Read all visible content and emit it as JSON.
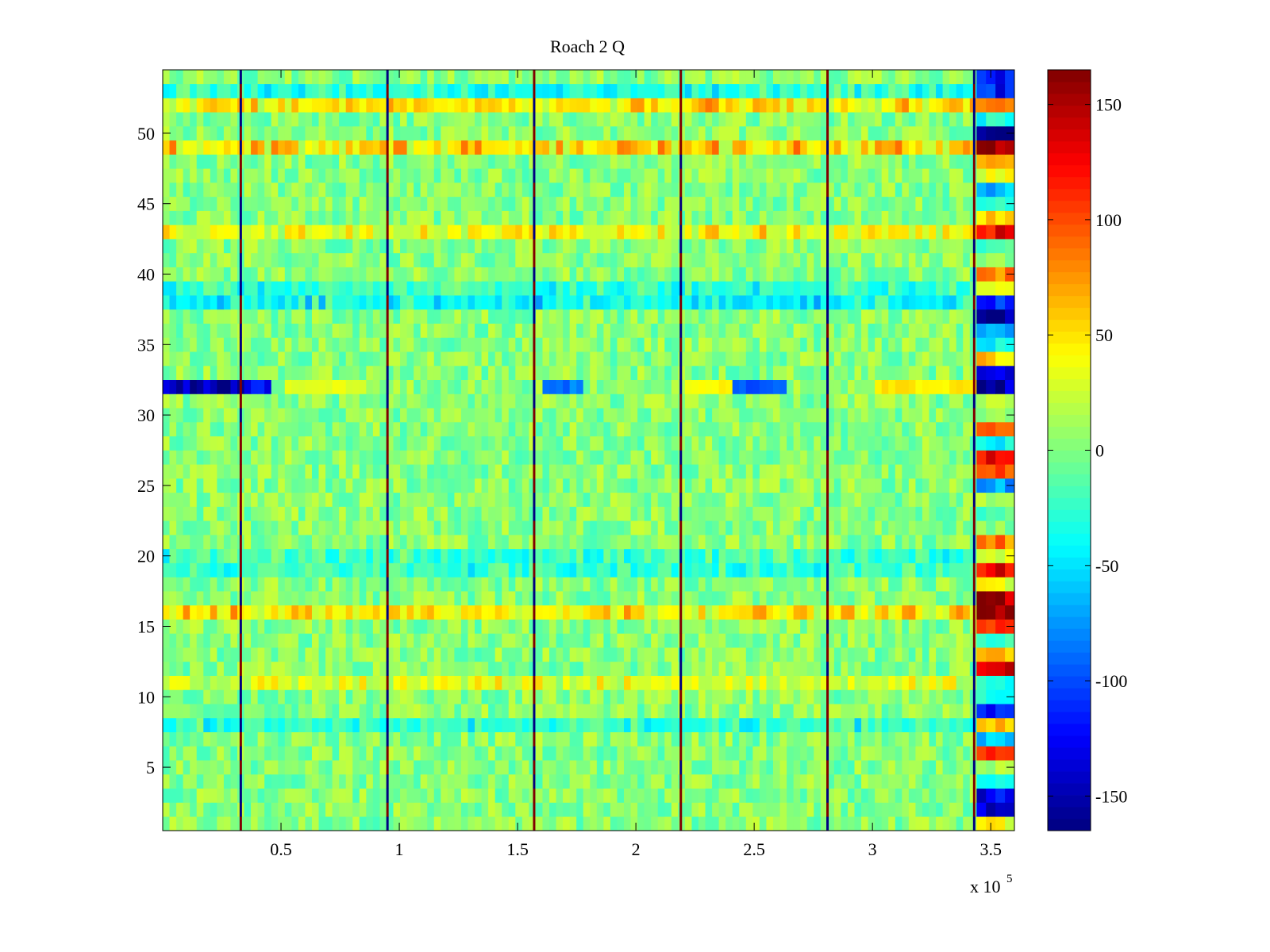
{
  "chart_data": {
    "type": "heatmap",
    "title": "Roach 2 Q",
    "xlabel": "",
    "ylabel": "",
    "x_multiplier": "x 10",
    "x_multiplier_exponent": "5",
    "xlim": [
      0,
      360000
    ],
    "ylim": [
      0.5,
      54.5
    ],
    "x_ticks": [
      0.5,
      1,
      1.5,
      2,
      2.5,
      3,
      3.5
    ],
    "x_tick_labels": [
      "0.5",
      "1",
      "1.5",
      "2",
      "2.5",
      "3",
      "3.5"
    ],
    "y_ticks": [
      5,
      10,
      15,
      20,
      25,
      30,
      35,
      40,
      45,
      50
    ],
    "y_tick_labels": [
      "5",
      "10",
      "15",
      "20",
      "25",
      "30",
      "35",
      "40",
      "45",
      "50"
    ],
    "colorbar": {
      "colormap": "jet",
      "clim": [
        -165,
        165
      ],
      "ticks": [
        -150,
        -100,
        -50,
        0,
        50,
        100,
        150
      ],
      "tick_labels": [
        "-150",
        "-100",
        "-50",
        "0",
        "50",
        "100",
        "150"
      ]
    },
    "rows": 54,
    "baseline_value": 0,
    "spike_columns_x": [
      33000,
      95000,
      157000,
      219000,
      281000,
      343000
    ],
    "spike_values": [
      165,
      -165
    ],
    "edge_block_x_range": [
      344000,
      360000
    ],
    "highlight_row": 32,
    "highlight_row_segments": [
      {
        "x_range": [
          0,
          33000
        ],
        "value": -160
      },
      {
        "x_range": [
          33000,
          45000
        ],
        "value": -130
      },
      {
        "x_range": [
          50000,
          85000
        ],
        "value": 35
      },
      {
        "x_range": [
          160000,
          175000
        ],
        "value": -90
      },
      {
        "x_range": [
          220000,
          240000
        ],
        "value": 45
      },
      {
        "x_range": [
          240000,
          262000
        ],
        "value": -100
      },
      {
        "x_range": [
          300000,
          343000
        ],
        "value": 50
      },
      {
        "x_range": [
          344000,
          360000
        ],
        "value": -160
      }
    ],
    "row_bias": [
      {
        "row": 52,
        "value": 45
      },
      {
        "row": 53,
        "value": -30
      },
      {
        "row": 49,
        "value": 50
      },
      {
        "row": 43,
        "value": 35
      },
      {
        "row": 38,
        "value": -40
      },
      {
        "row": 39,
        "value": -30
      },
      {
        "row": 16,
        "value": 45
      },
      {
        "row": 20,
        "value": -25
      },
      {
        "row": 19,
        "value": -25
      },
      {
        "row": 8,
        "value": -30
      },
      {
        "row": 11,
        "value": 25
      }
    ],
    "edge_block_values": [
      {
        "row": 54,
        "value": -120
      },
      {
        "row": 53,
        "value": -130
      },
      {
        "row": 52,
        "value": 90
      },
      {
        "row": 51,
        "value": -40
      },
      {
        "row": 50,
        "value": -160
      },
      {
        "row": 49,
        "value": 165
      },
      {
        "row": 48,
        "value": 80
      },
      {
        "row": 47,
        "value": 40
      },
      {
        "row": 46,
        "value": -60
      },
      {
        "row": 45,
        "value": -40
      },
      {
        "row": 44,
        "value": 60
      },
      {
        "row": 43,
        "value": 120
      },
      {
        "row": 42,
        "value": -20
      },
      {
        "row": 41,
        "value": 10
      },
      {
        "row": 40,
        "value": 100
      },
      {
        "row": 39,
        "value": 40
      },
      {
        "row": 38,
        "value": -140
      },
      {
        "row": 37,
        "value": -160
      },
      {
        "row": 36,
        "value": -80
      },
      {
        "row": 35,
        "value": -40
      },
      {
        "row": 34,
        "value": 60
      },
      {
        "row": 33,
        "value": -140
      },
      {
        "row": 31,
        "value": 20
      },
      {
        "row": 30,
        "value": 0
      },
      {
        "row": 29,
        "value": 110
      },
      {
        "row": 28,
        "value": -40
      },
      {
        "row": 27,
        "value": 140
      },
      {
        "row": 26,
        "value": 110
      },
      {
        "row": 25,
        "value": -80
      },
      {
        "row": 24,
        "value": 20
      },
      {
        "row": 23,
        "value": -20
      },
      {
        "row": 22,
        "value": 0
      },
      {
        "row": 21,
        "value": 90
      },
      {
        "row": 20,
        "value": 40
      },
      {
        "row": 19,
        "value": 130
      },
      {
        "row": 18,
        "value": 40
      },
      {
        "row": 17,
        "value": 165
      },
      {
        "row": 16,
        "value": 165
      },
      {
        "row": 15,
        "value": 120
      },
      {
        "row": 14,
        "value": -20
      },
      {
        "row": 13,
        "value": 60
      },
      {
        "row": 12,
        "value": 140
      },
      {
        "row": 11,
        "value": -40
      },
      {
        "row": 10,
        "value": -30
      },
      {
        "row": 9,
        "value": -120
      },
      {
        "row": 8,
        "value": 60
      },
      {
        "row": 7,
        "value": -60
      },
      {
        "row": 6,
        "value": 120
      },
      {
        "row": 5,
        "value": 20
      },
      {
        "row": 4,
        "value": -40
      },
      {
        "row": 3,
        "value": -160
      },
      {
        "row": 2,
        "value": -160
      },
      {
        "row": 1,
        "value": 40
      }
    ]
  }
}
